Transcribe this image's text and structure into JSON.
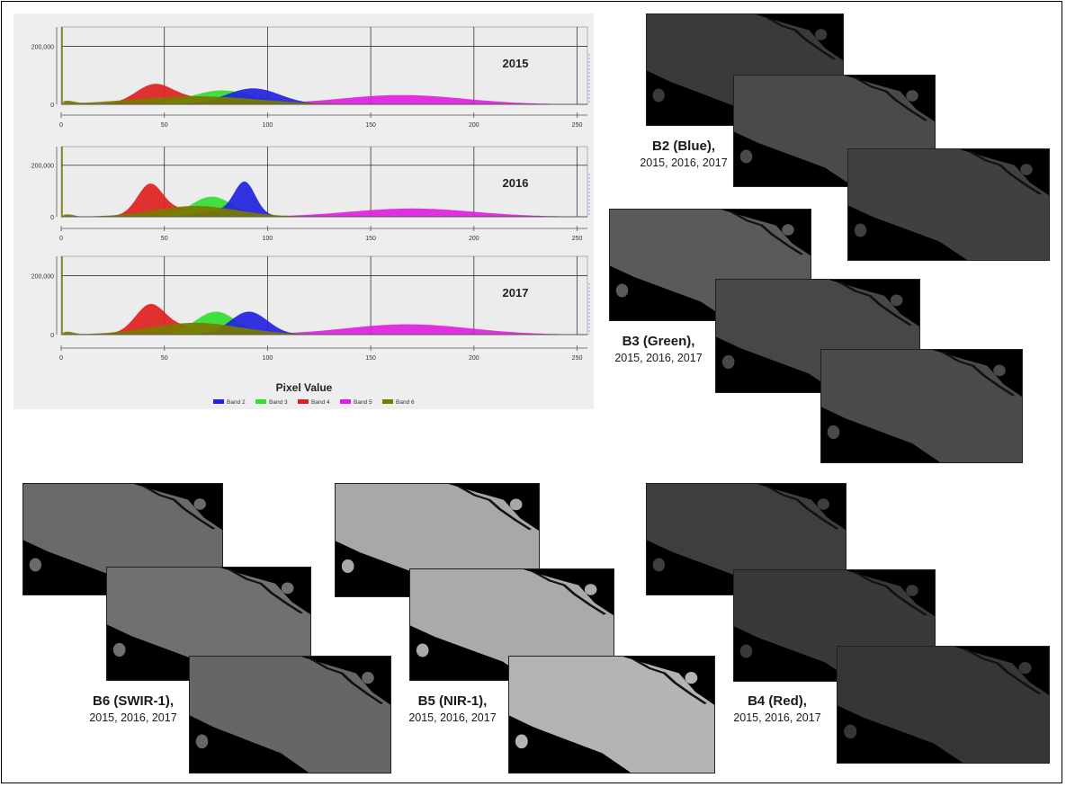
{
  "chart_data": {
    "type": "area",
    "x_axis": {
      "label": "Pixel Value",
      "range": [
        0,
        255
      ],
      "ticks": [
        "0",
        "50",
        "100",
        "150",
        "200",
        "250"
      ]
    },
    "y_axis": {
      "range": [
        0,
        220000
      ],
      "ticks": [
        "0",
        "200,000"
      ]
    },
    "grid": true,
    "legend": {
      "placement": "bottom",
      "entries": [
        "Band 2",
        "Band 3",
        "Band 4",
        "Band 5",
        "Band 6"
      ]
    },
    "colors": {
      "Band 2": "#2222e0",
      "Band 3": "#33dd33",
      "Band 4": "#e02020",
      "Band 5": "#e020e0",
      "Band 6": "#7a7a00"
    },
    "panels": [
      {
        "year": "2015",
        "series": [
          {
            "name": "Band 2",
            "peaks": [
              {
                "center": 93,
                "height": 55000,
                "width": 13
              }
            ]
          },
          {
            "name": "Band 3",
            "peaks": [
              {
                "center": 78,
                "height": 48000,
                "width": 15
              }
            ]
          },
          {
            "name": "Band 4",
            "peaks": [
              {
                "center": 45,
                "height": 62000,
                "width": 9
              },
              {
                "center": 70,
                "height": 22000,
                "width": 18
              }
            ]
          },
          {
            "name": "Band 5",
            "peaks": [
              {
                "center": 165,
                "height": 32000,
                "width": 30
              }
            ]
          },
          {
            "name": "Band 6",
            "peaks": [
              {
                "center": 65,
                "height": 28000,
                "width": 30
              }
            ]
          }
        ]
      },
      {
        "year": "2016",
        "series": [
          {
            "name": "Band 2",
            "peaks": [
              {
                "center": 89,
                "height": 118000,
                "width": 5
              },
              {
                "center": 80,
                "height": 25000,
                "width": 12
              }
            ]
          },
          {
            "name": "Band 3",
            "peaks": [
              {
                "center": 73,
                "height": 78000,
                "width": 10
              }
            ]
          },
          {
            "name": "Band 4",
            "peaks": [
              {
                "center": 43,
                "height": 112000,
                "width": 6
              },
              {
                "center": 60,
                "height": 30000,
                "width": 16
              }
            ]
          },
          {
            "name": "Band 5",
            "peaks": [
              {
                "center": 170,
                "height": 32000,
                "width": 30
              }
            ]
          },
          {
            "name": "Band 6",
            "peaks": [
              {
                "center": 65,
                "height": 42000,
                "width": 20
              }
            ]
          }
        ]
      },
      {
        "year": "2017",
        "series": [
          {
            "name": "Band 2",
            "peaks": [
              {
                "center": 91,
                "height": 78000,
                "width": 9
              }
            ]
          },
          {
            "name": "Band 3",
            "peaks": [
              {
                "center": 75,
                "height": 78000,
                "width": 10
              }
            ]
          },
          {
            "name": "Band 4",
            "peaks": [
              {
                "center": 43,
                "height": 88000,
                "width": 7
              },
              {
                "center": 60,
                "height": 28000,
                "width": 16
              }
            ]
          },
          {
            "name": "Band 5",
            "peaks": [
              {
                "center": 168,
                "height": 35000,
                "width": 30
              }
            ]
          },
          {
            "name": "Band 6",
            "peaks": [
              {
                "center": 65,
                "height": 40000,
                "width": 22
              }
            ]
          }
        ]
      }
    ]
  },
  "captions": {
    "blue": {
      "band": "B2 (Blue),",
      "years": "2015, 2016, 2017"
    },
    "green": {
      "band": "B3 (Green),",
      "years": "2015, 2016, 2017"
    },
    "swir": {
      "band": "B6 (SWIR-1),",
      "years": "2015, 2016, 2017"
    },
    "nir": {
      "band": "B5 (NIR-1),",
      "years": "2015, 2016, 2017"
    },
    "red": {
      "band": "B4 (Red),",
      "years": "2015, 2016, 2017"
    }
  },
  "image_groups": [
    "B2 Blue",
    "B3 Green",
    "B6 SWIR-1",
    "B5 NIR-1",
    "B4 Red"
  ]
}
